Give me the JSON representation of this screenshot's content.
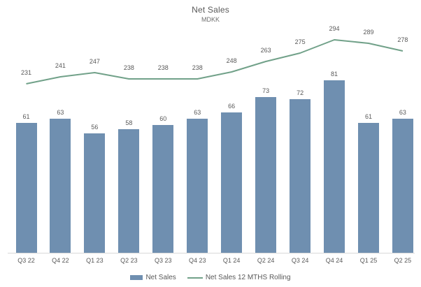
{
  "chart_data": {
    "type": "combo",
    "title": "Net Sales",
    "subtitle": "MDKK",
    "categories": [
      "Q3 22",
      "Q4 22",
      "Q1 23",
      "Q2 23",
      "Q3 23",
      "Q4 23",
      "Q1 24",
      "Q2 24",
      "Q3 24",
      "Q4 24",
      "Q1 25",
      "Q2 25"
    ],
    "series": [
      {
        "name": "Net Sales",
        "type": "bar",
        "values": [
          61,
          63,
          56,
          58,
          60,
          63,
          66,
          73,
          72,
          81,
          61,
          63
        ],
        "color": "#6f8fb0"
      },
      {
        "name": "Net Sales 12 MTHS Rolling",
        "type": "line",
        "values": [
          231,
          241,
          247,
          238,
          238,
          238,
          248,
          263,
          275,
          294,
          289,
          278
        ],
        "color": "#71a189"
      }
    ],
    "data_labels": true,
    "grid": false,
    "legend_position": "bottom",
    "text_color": "#595959",
    "axis_line_color": "#d9d9d9"
  }
}
